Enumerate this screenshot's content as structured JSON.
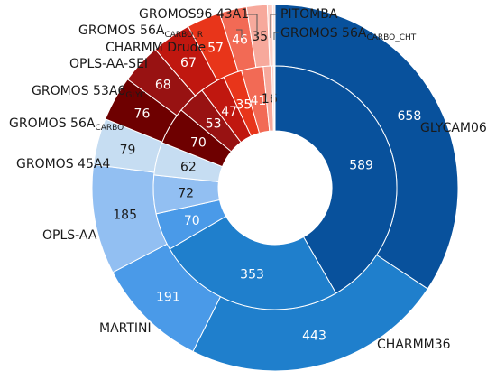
{
  "chart_data": {
    "type": "pie",
    "subtype": "nested-donut",
    "title": "",
    "colors": {
      "GLYCAM06": "#08519c",
      "CHARMM36": "#1f7fcc",
      "MARTINI": "#4a9ae8",
      "OPLS-AA": "#92bff2",
      "GROMOS 45A4": "#c6ddf2",
      "GROMOS 56A CARBO": "#6e0000",
      "GROMOS 53A6 GLYC": "#981212",
      "OPLS-AA-SEI": "#c0170f",
      "CHARMM Drude": "#e8351a",
      "GROMOS 56A CARBO_R": "#f26a55",
      "GROMOS96 43A1": "#f7a99c",
      "PITOMBA": "#fbd0c8",
      "GROMOS 56A CARBO_CHT": "#fde7e2"
    },
    "series": [
      {
        "ring": "outer",
        "values": [
          658,
          443,
          191,
          185,
          79,
          76,
          68,
          67,
          57,
          46,
          35,
          9,
          4
        ]
      },
      {
        "ring": "inner",
        "values": [
          589,
          353,
          70,
          72,
          62,
          70,
          53,
          47,
          35,
          41,
          16,
          4,
          2
        ]
      }
    ],
    "categories": [
      {
        "name": "GLYCAM06",
        "main": "GLYCAM06",
        "sub": ""
      },
      {
        "name": "CHARMM36",
        "main": "CHARMM36",
        "sub": ""
      },
      {
        "name": "MARTINI",
        "main": "MARTINI",
        "sub": ""
      },
      {
        "name": "OPLS-AA",
        "main": "OPLS-AA",
        "sub": ""
      },
      {
        "name": "GROMOS 45A4",
        "main": "GROMOS 45A4",
        "sub": ""
      },
      {
        "name": "GROMOS 56A CARBO",
        "main": "GROMOS 56A",
        "sub": "CARBO"
      },
      {
        "name": "GROMOS 53A6 GLYC",
        "main": "GROMOS 53A6",
        "sub": "GLYC"
      },
      {
        "name": "OPLS-AA-SEI",
        "main": "OPLS-AA-SEI",
        "sub": ""
      },
      {
        "name": "CHARMM Drude",
        "main": "CHARMM Drude",
        "sub": ""
      },
      {
        "name": "GROMOS 56A CARBO_R",
        "main": "GROMOS 56A",
        "sub": "CARBO_R"
      },
      {
        "name": "GROMOS96 43A1",
        "main": "GROMOS96 43A1",
        "sub": ""
      },
      {
        "name": "PITOMBA",
        "main": "PITOMBA",
        "sub": ""
      },
      {
        "name": "GROMOS 56A CARBO_CHT",
        "main": "GROMOS 56A",
        "sub": "CARBO_CHT"
      }
    ],
    "outer_value_labels": [
      "658",
      "443",
      "191",
      "185",
      "79",
      "76",
      "68",
      "67",
      "57",
      "46",
      "35",
      "",
      ""
    ],
    "inner_value_labels": [
      "589",
      "353",
      "70",
      "72",
      "62",
      "70",
      "53",
      "47",
      "35",
      "41",
      "16",
      "",
      ""
    ],
    "legend": "none"
  }
}
